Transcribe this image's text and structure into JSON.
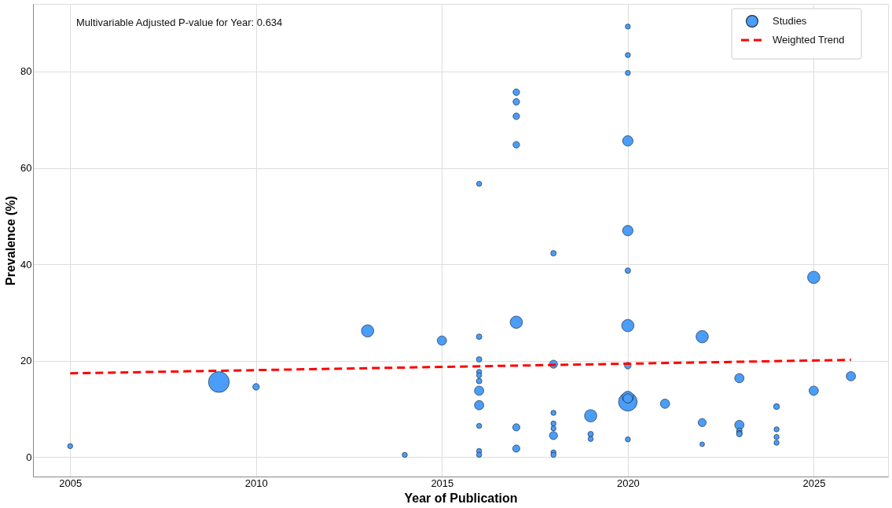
{
  "chart_data": {
    "type": "bubble",
    "xlabel": "Year of Publication",
    "ylabel": "Prevalence (%)",
    "annotations": [
      "Multivariable Adjusted P-value for Year: 0.634"
    ],
    "xlim": [
      2004,
      2027
    ],
    "xticks": [
      2005,
      2010,
      2015,
      2020,
      2025
    ],
    "ylim": [
      -4,
      94
    ],
    "yticks": [
      0,
      20,
      40,
      60,
      80
    ],
    "grid": true,
    "legend": "top right",
    "series": [
      {
        "name": "Studies",
        "color": "#4a9df8",
        "marker": "circle",
        "x": [
          2005,
          2009,
          2010,
          2013,
          2014,
          2015,
          2016,
          2016,
          2016,
          2016,
          2016,
          2016,
          2016,
          2016,
          2016,
          2016,
          2016,
          2017,
          2017,
          2017,
          2017,
          2017,
          2017,
          2017,
          2018,
          2018,
          2018,
          2018,
          2018,
          2018,
          2018,
          2018,
          2019,
          2019,
          2019,
          2020,
          2020,
          2020,
          2020,
          2020,
          2020,
          2020,
          2020,
          2020,
          2020,
          2020,
          2020,
          2021,
          2022,
          2022,
          2022,
          2023,
          2023,
          2023,
          2023,
          2023,
          2024,
          2024,
          2024,
          2024,
          2025,
          2025,
          2026
        ],
        "values": [
          2.3,
          15.6,
          14.6,
          26.2,
          0.5,
          24.2,
          56.7,
          25.0,
          20.3,
          17.7,
          17.0,
          15.8,
          13.8,
          10.8,
          6.5,
          1.3,
          0.5,
          75.7,
          73.7,
          70.7,
          64.8,
          28.0,
          6.2,
          1.8,
          42.3,
          19.3,
          9.2,
          7.0,
          6.0,
          4.5,
          1.0,
          0.5,
          8.6,
          4.8,
          3.8,
          89.3,
          83.4,
          79.7,
          65.6,
          47.0,
          38.7,
          27.3,
          19.0,
          12.5,
          12.2,
          11.5,
          3.7,
          11.1,
          25.0,
          7.2,
          2.7,
          16.4,
          6.7,
          5.5,
          5.0,
          4.8,
          10.5,
          5.8,
          4.2,
          3.0,
          37.3,
          13.8,
          16.8
        ],
        "sizes": [
          0.06,
          1,
          0.1,
          0.35,
          0.06,
          0.2,
          0.06,
          0.07,
          0.07,
          0.06,
          0.06,
          0.07,
          0.2,
          0.2,
          0.06,
          0.06,
          0.06,
          0.1,
          0.1,
          0.1,
          0.1,
          0.35,
          0.12,
          0.12,
          0.07,
          0.15,
          0.06,
          0.06,
          0.06,
          0.15,
          0.06,
          0.06,
          0.35,
          0.07,
          0.06,
          0.06,
          0.06,
          0.06,
          0.25,
          0.25,
          0.07,
          0.35,
          0.1,
          0.3,
          0.2,
          0.8,
          0.06,
          0.2,
          0.35,
          0.15,
          0.05,
          0.2,
          0.2,
          0.07,
          0.07,
          0.07,
          0.08,
          0.06,
          0.06,
          0.06,
          0.35,
          0.2,
          0.2
        ]
      },
      {
        "name": "Weighted Trend",
        "type": "line",
        "color": "#ff0000",
        "line_style": "dashed",
        "x": [
          2005,
          2026
        ],
        "values": [
          17.4,
          20.2
        ]
      }
    ]
  }
}
